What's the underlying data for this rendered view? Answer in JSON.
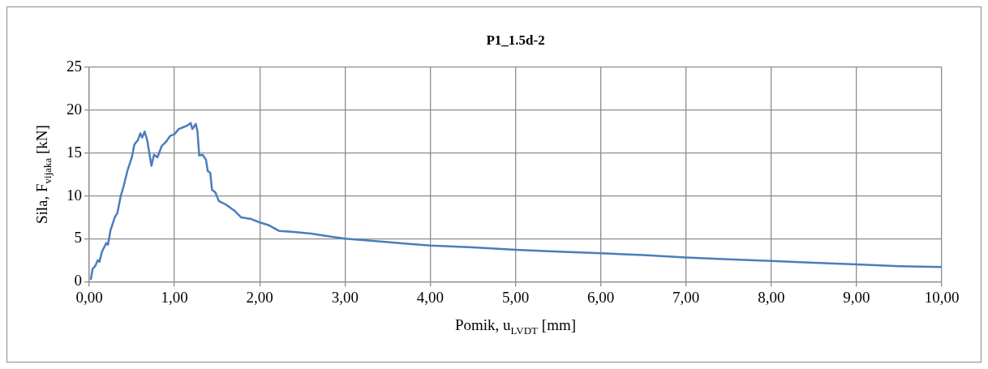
{
  "chart_data": {
    "type": "line",
    "title": "P1_1.5d-2",
    "xlabel": "Pomik, u$_{LVDT}$ [mm]",
    "ylabel": "Sila, F$_{vijaka}$ [kN]",
    "series": [
      {
        "color": "#4a7ebb",
        "x": [
          0.02,
          0.04,
          0.07,
          0.1,
          0.12,
          0.15,
          0.2,
          0.22,
          0.25,
          0.3,
          0.33,
          0.37,
          0.4,
          0.45,
          0.5,
          0.53,
          0.57,
          0.6,
          0.62,
          0.65,
          0.68,
          0.73,
          0.76,
          0.8,
          0.85,
          0.9,
          0.95,
          1.0,
          1.05,
          1.1,
          1.15,
          1.19,
          1.21,
          1.25,
          1.27,
          1.29,
          1.33,
          1.37,
          1.39,
          1.42,
          1.44,
          1.48,
          1.52,
          1.6,
          1.7,
          1.78,
          1.9,
          2.0,
          2.1,
          2.23,
          2.4,
          2.6,
          2.8,
          3.0,
          3.5,
          4.0,
          4.5,
          5.0,
          5.5,
          6.0,
          6.5,
          7.0,
          7.5,
          8.0,
          8.5,
          9.0,
          9.5,
          10.0
        ],
        "values": [
          0.3,
          1.5,
          1.8,
          2.5,
          2.3,
          3.5,
          4.5,
          4.3,
          6,
          7.5,
          8,
          10,
          11,
          13,
          14.5,
          16,
          16.5,
          17.3,
          16.8,
          17.5,
          16.5,
          13.5,
          14.8,
          14.5,
          15.8,
          16.3,
          17,
          17.2,
          17.8,
          18,
          18.2,
          18.5,
          17.8,
          18.4,
          17.5,
          14.7,
          14.8,
          14.2,
          12.9,
          12.7,
          10.7,
          10.4,
          9.4,
          9,
          8.3,
          7.5,
          7.3,
          6.9,
          6.6,
          5.9,
          5.8,
          5.6,
          5.3,
          5,
          4.6,
          4.2,
          4,
          3.7,
          3.5,
          3.3,
          3.1,
          2.8,
          2.6,
          2.4,
          2.2,
          2,
          1.8,
          1.7
        ]
      }
    ],
    "xlim": [
      0,
      10
    ],
    "xticks": [
      {
        "value": 0,
        "label": "0,00"
      },
      {
        "value": 1,
        "label": "1,00"
      },
      {
        "value": 2,
        "label": "2,00"
      },
      {
        "value": 3,
        "label": "3,00"
      },
      {
        "value": 4,
        "label": "4,00"
      },
      {
        "value": 5,
        "label": "5,00"
      },
      {
        "value": 6,
        "label": "6,00"
      },
      {
        "value": 7,
        "label": "7,00"
      },
      {
        "value": 8,
        "label": "8,00"
      },
      {
        "value": 9,
        "label": "9,00"
      },
      {
        "value": 10,
        "label": "10,00"
      }
    ],
    "ylim": [
      0,
      25
    ],
    "yticks": [
      0,
      5,
      10,
      15,
      20,
      25
    ],
    "grid": true,
    "legend": false,
    "marker": "none",
    "line_style": "solid"
  }
}
